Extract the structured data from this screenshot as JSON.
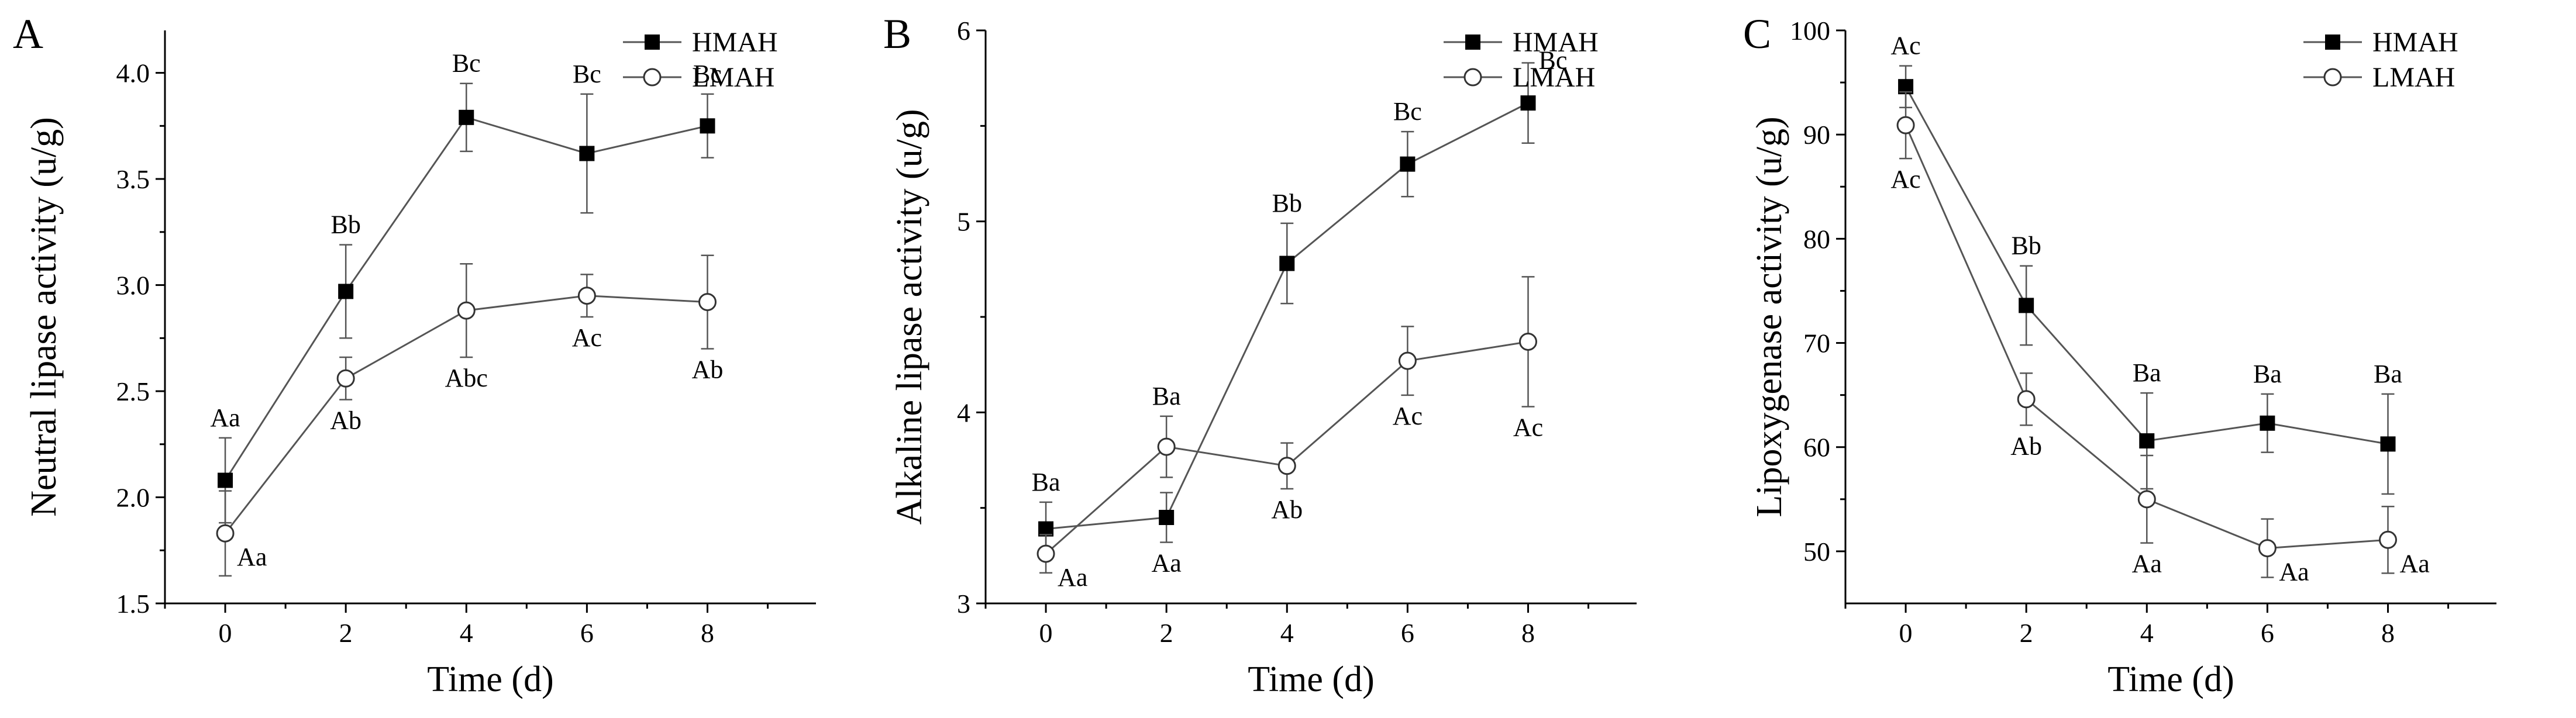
{
  "chart_data": [
    {
      "type": "line",
      "panel": "A",
      "title": "",
      "xlabel": "Time (d)",
      "ylabel": "Neutral lipase activity (u/g)",
      "x": [
        0,
        2,
        4,
        6,
        8
      ],
      "xlim": [
        -1,
        9.8
      ],
      "ylim": [
        1.5,
        4.2
      ],
      "yticks": [
        1.5,
        2.0,
        2.5,
        3.0,
        3.5,
        4.0
      ],
      "ytick_labels": [
        "1.5",
        "2.0",
        "2.5",
        "3.0",
        "3.5",
        "4.0"
      ],
      "xtick_labels": [
        "0",
        "2",
        "4",
        "6",
        "8"
      ],
      "legend_position": "top-right",
      "series": [
        {
          "name": "HMAH",
          "marker": "filled-square",
          "values": [
            2.08,
            2.97,
            3.79,
            3.62,
            3.75
          ],
          "errors": [
            0.2,
            0.22,
            0.16,
            0.28,
            0.15
          ],
          "labels": [
            "Aa",
            "Bb",
            "Bc",
            "Bc",
            "Bc"
          ],
          "label_side": [
            "above",
            "above",
            "above",
            "above",
            "above"
          ]
        },
        {
          "name": "LMAH",
          "marker": "open-circle",
          "values": [
            1.83,
            2.56,
            2.88,
            2.95,
            2.92
          ],
          "errors": [
            0.2,
            0.1,
            0.22,
            0.1,
            0.22
          ],
          "labels": [
            "Aa",
            "Ab",
            "Abc",
            "Ac",
            "Ab"
          ],
          "label_side": [
            "right",
            "below",
            "below",
            "below",
            "below"
          ]
        }
      ]
    },
    {
      "type": "line",
      "panel": "B",
      "title": "",
      "xlabel": "Time (d)",
      "ylabel": "Alkaline lipase activity (u/g)",
      "x": [
        0,
        2,
        4,
        6,
        8
      ],
      "xlim": [
        -1,
        9.8
      ],
      "ylim": [
        3,
        6
      ],
      "yticks": [
        3,
        4,
        5,
        6
      ],
      "ytick_labels": [
        "3",
        "4",
        "5",
        "6"
      ],
      "xtick_labels": [
        "0",
        "2",
        "4",
        "6",
        "8"
      ],
      "legend_position": "top-right",
      "series": [
        {
          "name": "HMAH",
          "marker": "filled-square",
          "values": [
            3.39,
            3.45,
            4.78,
            5.3,
            5.62
          ],
          "errors": [
            0.14,
            0.13,
            0.21,
            0.17,
            0.21
          ],
          "labels": [
            "Ba",
            "Aa",
            "Bb",
            "Bc",
            "Bc"
          ],
          "label_side": [
            "above",
            "below",
            "above",
            "above",
            "right-above"
          ]
        },
        {
          "name": "LMAH",
          "marker": "open-circle",
          "values": [
            3.26,
            3.82,
            3.72,
            4.27,
            4.37
          ],
          "errors": [
            0.1,
            0.16,
            0.12,
            0.18,
            0.34
          ],
          "labels": [
            "Aa",
            "Ba",
            "Ab",
            "Ac",
            "Ac"
          ],
          "label_side": [
            "right",
            "above",
            "below",
            "below",
            "below"
          ]
        }
      ]
    },
    {
      "type": "line",
      "panel": "C",
      "title": "",
      "xlabel": "Time (d)",
      "ylabel": "Lipoxygenase activity (u/g)",
      "x": [
        0,
        2,
        4,
        6,
        8
      ],
      "xlim": [
        -1,
        9.8
      ],
      "ylim": [
        45,
        100
      ],
      "yticks": [
        50,
        60,
        70,
        80,
        90,
        100
      ],
      "ytick_labels": [
        "50",
        "60",
        "70",
        "80",
        "90",
        "100"
      ],
      "xtick_labels": [
        "0",
        "2",
        "4",
        "6",
        "8"
      ],
      "legend_position": "top-right",
      "series": [
        {
          "name": "HMAH",
          "marker": "filled-square",
          "values": [
            94.6,
            73.6,
            60.6,
            62.3,
            60.3
          ],
          "errors": [
            2.0,
            3.8,
            4.6,
            2.8,
            4.8
          ],
          "labels": [
            "Ac",
            "Bb",
            "Ba",
            "Ba",
            "Ba"
          ],
          "label_side": [
            "above",
            "above",
            "above",
            "above",
            "above"
          ]
        },
        {
          "name": "LMAH",
          "marker": "open-circle",
          "values": [
            90.9,
            64.6,
            55.0,
            50.3,
            51.1
          ],
          "errors": [
            3.2,
            2.5,
            4.2,
            2.8,
            3.2
          ],
          "labels": [
            "Ac",
            "Ab",
            "Aa",
            "Aa",
            "Aa"
          ],
          "label_side": [
            "below",
            "below",
            "below",
            "right",
            "right"
          ]
        }
      ]
    }
  ]
}
